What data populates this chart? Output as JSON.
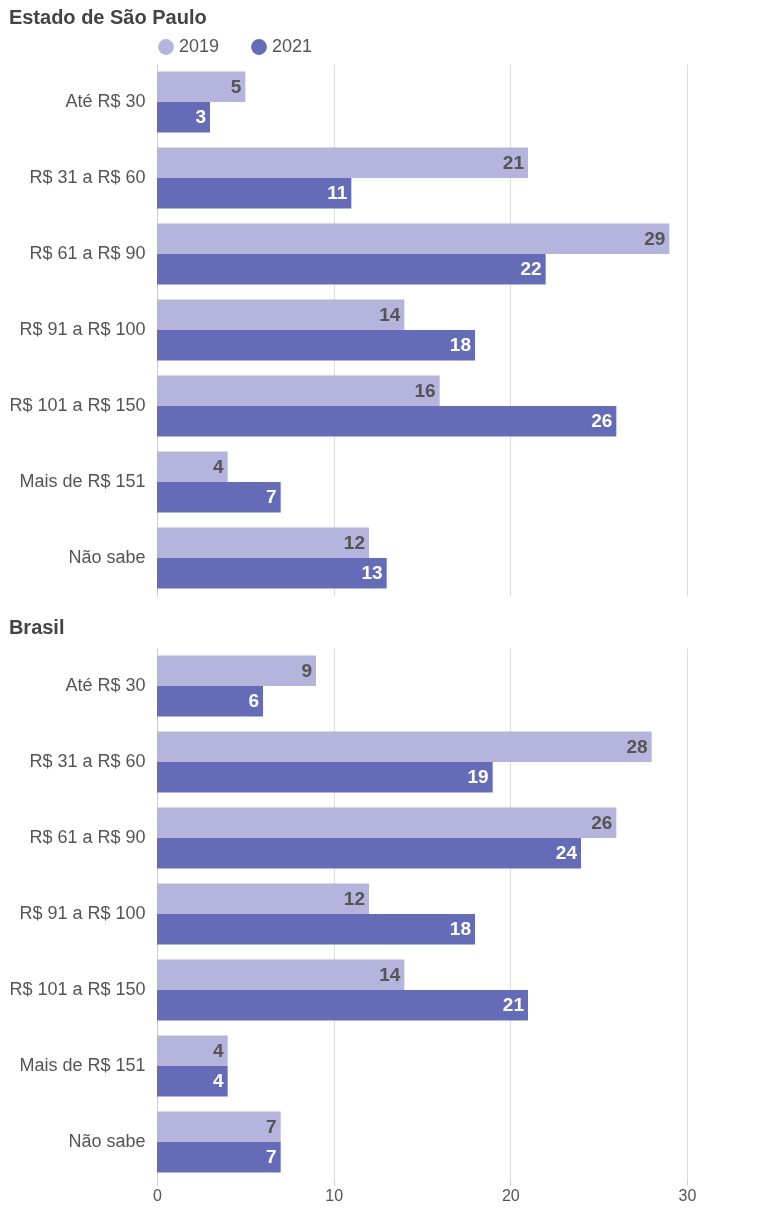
{
  "chart_data": [
    {
      "type": "bar",
      "orientation": "horizontal",
      "title": "Estado de São Paulo",
      "categories": [
        "Até R$ 30",
        "R$ 31 a R$ 60",
        "R$ 61 a R$ 90",
        "R$ 91 a R$ 100",
        "R$ 101 a R$ 150",
        "Mais de R$ 151",
        "Não sabe"
      ],
      "series": [
        {
          "name": "2019",
          "color": "#b4b4dc",
          "values": [
            5,
            21,
            29,
            14,
            16,
            4,
            12
          ]
        },
        {
          "name": "2021",
          "color": "#646cb8",
          "values": [
            3,
            11,
            22,
            18,
            26,
            7,
            13
          ]
        }
      ],
      "xlim": [
        0,
        30
      ],
      "xticks": [
        0,
        10,
        20,
        30
      ],
      "grid": "x",
      "data_labels": true,
      "legend": "top",
      "tick_labels": "y"
    },
    {
      "type": "bar",
      "orientation": "horizontal",
      "title": "Brasil",
      "categories": [
        "Até R$ 30",
        "R$ 31 a R$ 60",
        "R$ 61 a R$ 90",
        "R$ 91 a R$ 100",
        "R$ 101 a R$ 150",
        "Mais de R$ 151",
        "Não sabe"
      ],
      "series": [
        {
          "name": "2019",
          "color": "#b4b4dc",
          "values": [
            9,
            28,
            26,
            12,
            14,
            4,
            7
          ]
        },
        {
          "name": "2021",
          "color": "#646cb8",
          "values": [
            6,
            19,
            24,
            18,
            21,
            4,
            7
          ]
        }
      ],
      "xlim": [
        0,
        30
      ],
      "xticks": [
        0,
        10,
        20,
        30
      ],
      "grid": "x",
      "data_labels": true
    }
  ]
}
